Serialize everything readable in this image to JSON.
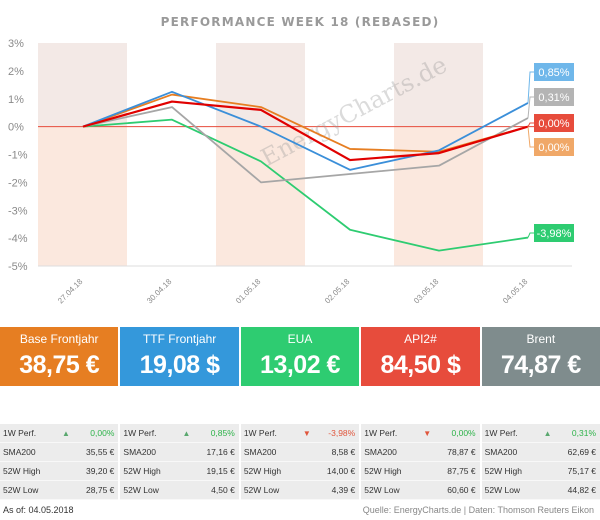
{
  "chart_data": {
    "type": "line",
    "title": "PERFORMANCE   WEEK 18 (REBASED)",
    "categories": [
      "27.04.18",
      "30.04.18",
      "01.05.18",
      "02.05.18",
      "03.05.18",
      "04.05.18"
    ],
    "ylim": [
      -5,
      3
    ],
    "yticks": [
      "3%",
      "2%",
      "1%",
      "0%",
      "-1%",
      "-2%",
      "-3%",
      "-4%",
      "-5%"
    ],
    "series": [
      {
        "name": "Base Frontjahr",
        "color": "#e67e22",
        "values": [
          0,
          1.15,
          0.7,
          -0.8,
          -0.9,
          0.0
        ],
        "end_label": "0,00%"
      },
      {
        "name": "TTF Frontjahr",
        "color": "#3b8fd9",
        "values": [
          0,
          1.25,
          0.0,
          -1.55,
          -0.85,
          0.85
        ],
        "end_label": "0,85%"
      },
      {
        "name": "EUA",
        "color": "#2ecc71",
        "values": [
          0,
          0.25,
          -1.25,
          -3.7,
          -4.45,
          -3.98
        ],
        "end_label": "-3,98%"
      },
      {
        "name": "API2#",
        "color": "#e00000",
        "values": [
          0,
          0.9,
          0.6,
          -1.2,
          -0.95,
          0.0
        ],
        "end_label": "0,00%"
      },
      {
        "name": "Brent",
        "color": "#a6a6a6",
        "values": [
          0,
          0.7,
          -2.0,
          -1.7,
          -1.4,
          0.31
        ],
        "end_label": "0,31%"
      }
    ],
    "label_order": [
      "TTF Frontjahr",
      "Brent",
      "API2#",
      "Base Frontjahr",
      "EUA"
    ],
    "label_colors": [
      "#6fb7ea",
      "#b4b4b4",
      "#e74c3c",
      "#f0a868",
      "#2ecc71"
    ],
    "grid": false
  },
  "watermark": "EnergyCharts.de",
  "kpis": [
    {
      "name": "Base Frontjahr",
      "value": "38,75 €",
      "color": "#e67e22"
    },
    {
      "name": "TTF Frontjahr",
      "value": "19,08 $",
      "color": "#3498db"
    },
    {
      "name": "EUA",
      "value": "13,02 €",
      "color": "#2ecc71"
    },
    {
      "name": "API2#",
      "value": "84,50 $",
      "color": "#e74c3c"
    },
    {
      "name": "Brent",
      "value": "74,87 €",
      "color": "#7f8c8d"
    }
  ],
  "stat_labels": {
    "perf": "1W Perf.",
    "sma": "SMA200",
    "high": "52W High",
    "low": "52W Low"
  },
  "stats": [
    {
      "perf": "0,00%",
      "dir": "up",
      "sma": "35,55 €",
      "high": "39,20 €",
      "low": "28,75 €"
    },
    {
      "perf": "0,85%",
      "dir": "up",
      "sma": "17,16 €",
      "high": "19,15 €",
      "low": "4,50 €"
    },
    {
      "perf": "-3,98%",
      "dir": "down",
      "sma": "8,58 €",
      "high": "14,00 €",
      "low": "4,39 €"
    },
    {
      "perf": "0,00%",
      "dir": "down",
      "sma": "78,87 €",
      "high": "87,75 €",
      "low": "60,60 €"
    },
    {
      "perf": "0,31%",
      "dir": "up",
      "sma": "62,69 €",
      "high": "75,17 €",
      "low": "44,82 €"
    }
  ],
  "footer": {
    "left": "As of: 04.05.2018",
    "right": "Quelle: EnergyCharts.de | Daten: Thomson Reuters Eikon"
  }
}
